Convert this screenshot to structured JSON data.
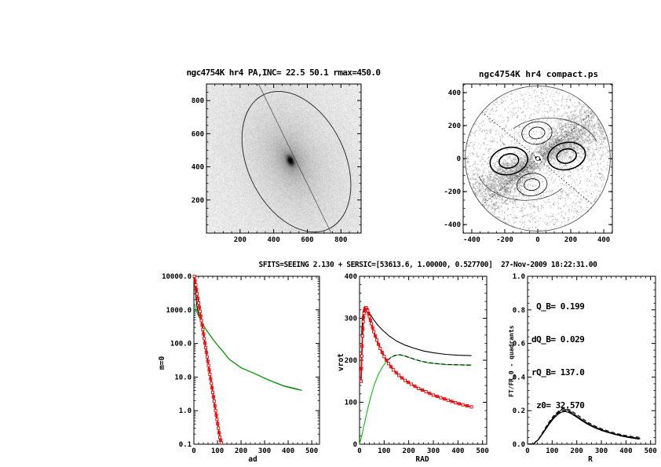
{
  "page": {
    "background": "#ffffff"
  },
  "fit_title": "SFITS=SEEING 2.130 + SERSIC=[53613.6, 1.00000, 0.527700]  27-Nov-2009 18:22:31.00",
  "chart_data": [
    {
      "id": "galaxy-image",
      "type": "heatmap",
      "title": "ngc4754K hr4 PA,INC= 22.5 50.1 rmax=450.0",
      "xlim": [
        0,
        920
      ],
      "ylim": [
        0,
        900
      ],
      "xticks": [
        200,
        400,
        600,
        800
      ],
      "yticks": [
        200,
        400,
        600,
        800
      ],
      "xminor": 50,
      "yminor": 50,
      "galaxy_center": [
        500,
        437
      ],
      "ellipse": {
        "cx": 535,
        "cy": 431,
        "rmax": 450,
        "axis_ratio": 0.64,
        "pa_deg": 26
      }
    },
    {
      "id": "compact-map",
      "type": "heatmap",
      "title": "ngc4754K hr4 compact.ps",
      "xlim": [
        -452,
        452
      ],
      "ylim": [
        -452,
        452
      ],
      "xticks": [
        -400,
        -200,
        0,
        200,
        400
      ],
      "yticks": [
        -400,
        -200,
        0,
        200,
        400
      ],
      "xminor": 50,
      "yminor": 50,
      "boundary_radius": 440,
      "dotted_line_angles_deg": [
        40,
        -40
      ],
      "speckle_band_angle_deg": 33,
      "lobes": [
        {
          "cx": -175,
          "cy": -15,
          "rx": 115,
          "ry": 82,
          "rot_deg": -12,
          "weight": "thick"
        },
        {
          "cx": 175,
          "cy": 15,
          "rx": 115,
          "ry": 82,
          "rot_deg": -12,
          "weight": "thick"
        },
        {
          "cx": -5,
          "cy": 155,
          "rx": 92,
          "ry": 68,
          "rot_deg": -8,
          "weight": "thin"
        },
        {
          "cx": -35,
          "cy": -158,
          "rx": 92,
          "ry": 68,
          "rot_deg": -8,
          "weight": "thin"
        }
      ]
    },
    {
      "id": "m0-profile",
      "type": "line",
      "xlabel": "ad",
      "ylabel": "m=0",
      "xlim": [
        0,
        533
      ],
      "xticks": [
        0,
        100,
        200,
        300,
        400,
        500
      ],
      "xminor": 20,
      "yscale": "log",
      "ylim": [
        0.1,
        10000
      ],
      "ytick_vals": [
        10000,
        1000,
        100,
        10,
        1,
        0.1
      ],
      "ytick_labels": [
        "10000.0",
        "1000.0",
        "100.0",
        "10.0",
        "1.0",
        "0.1"
      ],
      "series": [
        {
          "name": "total-model",
          "color": "#000000",
          "style": "solid",
          "points": [
            [
              3,
              10000
            ],
            [
              5,
              5200
            ],
            [
              8,
              2600
            ],
            [
              12,
              1400
            ],
            [
              17,
              900
            ],
            [
              25,
              560
            ],
            [
              35,
              400
            ],
            [
              50,
              270
            ],
            [
              65,
              190
            ],
            [
              80,
              135
            ],
            [
              100,
              90
            ],
            [
              120,
              62
            ],
            [
              150,
              34
            ],
            [
              200,
              19
            ],
            [
              260,
              12.5
            ],
            [
              320,
              8
            ],
            [
              380,
              5.5
            ],
            [
              430,
              4.5
            ],
            [
              458,
              4
            ]
          ]
        },
        {
          "name": "disk-profile",
          "color": "#00b400",
          "style": "solid",
          "points": [
            [
              4,
              1500
            ],
            [
              6,
              1250
            ],
            [
              9,
              1000
            ],
            [
              13,
              830
            ],
            [
              18,
              690
            ],
            [
              25,
              555
            ],
            [
              35,
              398
            ],
            [
              50,
              268
            ],
            [
              65,
              189
            ],
            [
              80,
              134
            ],
            [
              100,
              89
            ],
            [
              120,
              61
            ],
            [
              150,
              33.5
            ],
            [
              200,
              18.8
            ],
            [
              260,
              12.4
            ],
            [
              320,
              7.9
            ],
            [
              380,
              5.4
            ],
            [
              430,
              4.4
            ],
            [
              458,
              4
            ]
          ]
        },
        {
          "name": "bulge-profile",
          "color": "#ee0000",
          "style": "marker-square",
          "points": [
            [
              2,
              10000
            ],
            [
              8,
              5500
            ],
            [
              14,
              3000
            ],
            [
              20,
              1600
            ],
            [
              26,
              900
            ],
            [
              32,
              480
            ],
            [
              38,
              260
            ],
            [
              44,
              140
            ],
            [
              50,
              75
            ],
            [
              56,
              40
            ],
            [
              62,
              22
            ],
            [
              68,
              12
            ],
            [
              74,
              6.5
            ],
            [
              80,
              3.5
            ],
            [
              86,
              1.9
            ],
            [
              92,
              1.0
            ],
            [
              98,
              0.55
            ],
            [
              104,
              0.3
            ],
            [
              110,
              0.16
            ],
            [
              116,
              0.11
            ]
          ]
        }
      ]
    },
    {
      "id": "rotation-curves",
      "type": "line",
      "xlabel": "RAD",
      "ylabel": "vrot",
      "xlim": [
        0,
        517
      ],
      "xticks": [
        0,
        100,
        200,
        300,
        400,
        500
      ],
      "xminor": 20,
      "ylim": [
        0,
        400
      ],
      "ytick_vals": [
        0,
        100,
        200,
        300,
        400
      ],
      "ytick_labels": [
        "0",
        "100",
        "200",
        "300",
        "400"
      ],
      "yminor": 20,
      "series": [
        {
          "name": "total-rotation",
          "color": "#000000",
          "style": "solid",
          "points": [
            [
              8,
              255
            ],
            [
              12,
              300
            ],
            [
              16,
              318
            ],
            [
              20,
              327
            ],
            [
              26,
              326
            ],
            [
              34,
              318
            ],
            [
              45,
              308
            ],
            [
              58,
              296
            ],
            [
              75,
              283
            ],
            [
              95,
              271
            ],
            [
              120,
              258
            ],
            [
              150,
              246
            ],
            [
              185,
              236
            ],
            [
              220,
              229
            ],
            [
              260,
              222
            ],
            [
              300,
              218
            ],
            [
              350,
              214
            ],
            [
              400,
              212
            ],
            [
              455,
              211
            ]
          ]
        },
        {
          "name": "disk-rotation",
          "color": "#00c800",
          "style": "solid",
          "points": [
            [
              0,
              0
            ],
            [
              8,
              18
            ],
            [
              18,
              44
            ],
            [
              30,
              76
            ],
            [
              45,
              112
            ],
            [
              60,
              142
            ],
            [
              78,
              168
            ],
            [
              95,
              186
            ],
            [
              112,
              199
            ],
            [
              128,
              207
            ],
            [
              145,
              212
            ],
            [
              162,
              213
            ],
            [
              180,
              211
            ],
            [
              200,
              207
            ],
            [
              225,
              202
            ],
            [
              250,
              198
            ],
            [
              280,
              194
            ],
            [
              310,
              192
            ],
            [
              350,
              190
            ],
            [
              400,
              189
            ],
            [
              455,
              189
            ]
          ]
        },
        {
          "name": "disk-rotation-model",
          "color": "#000000",
          "style": "dashed",
          "points": [
            [
              115,
              200
            ],
            [
              130,
              208
            ],
            [
              148,
              212
            ],
            [
              165,
              213
            ],
            [
              185,
              210
            ],
            [
              205,
              206
            ],
            [
              230,
              201
            ],
            [
              255,
              197
            ],
            [
              285,
              194
            ],
            [
              315,
              192
            ],
            [
              355,
              190
            ],
            [
              405,
              189
            ],
            [
              455,
              188
            ]
          ]
        },
        {
          "name": "bulge-rotation",
          "color": "#ee0000",
          "style": "marker-square",
          "points": [
            [
              6,
              150
            ],
            [
              9,
              210
            ],
            [
              12,
              258
            ],
            [
              15,
              292
            ],
            [
              18,
              312
            ],
            [
              22,
              323
            ],
            [
              27,
              325
            ],
            [
              33,
              318
            ],
            [
              40,
              304
            ],
            [
              48,
              287
            ],
            [
              58,
              268
            ],
            [
              70,
              248
            ],
            [
              84,
              228
            ],
            [
              100,
              209
            ],
            [
              118,
              192
            ],
            [
              138,
              177
            ],
            [
              160,
              164
            ],
            [
              185,
              152
            ],
            [
              210,
              143
            ],
            [
              240,
              133
            ],
            [
              270,
              125
            ],
            [
              300,
              117
            ],
            [
              330,
              111
            ],
            [
              360,
              105
            ],
            [
              390,
              99
            ],
            [
              420,
              94
            ],
            [
              455,
              89
            ]
          ]
        }
      ]
    },
    {
      "id": "quadrant-fourier",
      "type": "line",
      "xlabel": "R",
      "ylabel": "FT/FR_0 - quadrants",
      "xlim": [
        0,
        520
      ],
      "xticks": [
        0,
        100,
        200,
        300,
        400,
        500
      ],
      "xminor": 20,
      "ylim": [
        0,
        1
      ],
      "ytick_vals": [
        0,
        0.2,
        0.4,
        0.6,
        0.8,
        1
      ],
      "ytick_labels": [
        "0.0",
        "0.2",
        "0.4",
        "0.6",
        "0.8",
        "1.0"
      ],
      "yminor": 0.04,
      "annotations": [
        " Q_B= 0.199",
        "dQ_B= 0.029",
        "rQ_B= 137.0",
        " z0= 32.570"
      ],
      "series": [
        {
          "name": "quadrant-1",
          "color": "#000000",
          "style": "solid",
          "points": [
            [
              0,
              0
            ],
            [
              25,
              0.003
            ],
            [
              45,
              0.03
            ],
            [
              65,
              0.075
            ],
            [
              85,
              0.12
            ],
            [
              105,
              0.16
            ],
            [
              125,
              0.19
            ],
            [
              140,
              0.205
            ],
            [
              155,
              0.207
            ],
            [
              170,
              0.198
            ],
            [
              190,
              0.178
            ],
            [
              215,
              0.152
            ],
            [
              240,
              0.128
            ],
            [
              270,
              0.105
            ],
            [
              300,
              0.087
            ],
            [
              330,
              0.072
            ],
            [
              360,
              0.06
            ],
            [
              390,
              0.05
            ],
            [
              420,
              0.042
            ],
            [
              455,
              0.035
            ]
          ]
        },
        {
          "name": "quadrant-2",
          "color": "#000000",
          "style": "solid",
          "points": [
            [
              0,
              0
            ],
            [
              25,
              0.003
            ],
            [
              45,
              0.028
            ],
            [
              65,
              0.07
            ],
            [
              85,
              0.113
            ],
            [
              105,
              0.152
            ],
            [
              125,
              0.18
            ],
            [
              140,
              0.192
            ],
            [
              155,
              0.195
            ],
            [
              170,
              0.188
            ],
            [
              190,
              0.17
            ],
            [
              215,
              0.146
            ],
            [
              240,
              0.122
            ],
            [
              270,
              0.1
            ],
            [
              300,
              0.082
            ],
            [
              330,
              0.068
            ],
            [
              360,
              0.056
            ],
            [
              390,
              0.046
            ],
            [
              420,
              0.038
            ],
            [
              455,
              0.03
            ]
          ]
        },
        {
          "name": "quadrant-3",
          "color": "#000000",
          "style": "dashed",
          "points": [
            [
              0,
              0
            ],
            [
              25,
              0.004
            ],
            [
              45,
              0.032
            ],
            [
              65,
              0.08
            ],
            [
              85,
              0.127
            ],
            [
              105,
              0.168
            ],
            [
              125,
              0.196
            ],
            [
              142,
              0.212
            ],
            [
              158,
              0.213
            ],
            [
              175,
              0.202
            ],
            [
              195,
              0.182
            ],
            [
              220,
              0.156
            ],
            [
              245,
              0.131
            ],
            [
              275,
              0.108
            ],
            [
              305,
              0.09
            ],
            [
              335,
              0.075
            ],
            [
              365,
              0.063
            ],
            [
              395,
              0.053
            ],
            [
              425,
              0.046
            ],
            [
              460,
              0.04
            ]
          ]
        },
        {
          "name": "quadrant-4",
          "color": "#000000",
          "style": "dashed",
          "points": [
            [
              0,
              0
            ],
            [
              25,
              0.003
            ],
            [
              45,
              0.03
            ],
            [
              65,
              0.074
            ],
            [
              85,
              0.118
            ],
            [
              105,
              0.157
            ],
            [
              125,
              0.185
            ],
            [
              140,
              0.198
            ],
            [
              155,
              0.2
            ],
            [
              172,
              0.192
            ],
            [
              192,
              0.173
            ],
            [
              217,
              0.148
            ],
            [
              242,
              0.124
            ],
            [
              272,
              0.102
            ],
            [
              302,
              0.084
            ],
            [
              332,
              0.069
            ],
            [
              362,
              0.057
            ],
            [
              392,
              0.047
            ],
            [
              422,
              0.04
            ],
            [
              458,
              0.033
            ]
          ]
        }
      ]
    }
  ]
}
